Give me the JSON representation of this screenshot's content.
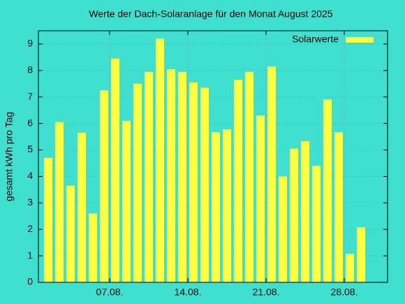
{
  "chart_data": {
    "type": "bar",
    "title": "Werte der Dach-Solaranlage für den Monat August 2025",
    "ylabel": "gesamt kWh pro Tag",
    "x": [
      1,
      2,
      3,
      4,
      5,
      6,
      7,
      8,
      9,
      10,
      11,
      12,
      13,
      14,
      15,
      16,
      17,
      18,
      19,
      20,
      21,
      22,
      23,
      24,
      25,
      26,
      27,
      28,
      29
    ],
    "series": [
      {
        "name": "Solarwerte",
        "color": "#ffff40",
        "values": [
          4.7,
          6.05,
          3.65,
          5.65,
          2.6,
          7.25,
          8.45,
          6.1,
          7.5,
          7.95,
          9.2,
          8.05,
          7.95,
          7.55,
          7.35,
          5.67,
          5.78,
          7.65,
          7.95,
          6.3,
          8.15,
          4.0,
          5.05,
          5.33,
          4.4,
          6.9,
          5.67,
          1.08,
          2.08
        ]
      }
    ],
    "xlim": [
      0.625,
      31.875
    ],
    "xticks": [
      {
        "value": 7,
        "label": "07.08."
      },
      {
        "value": 14,
        "label": "14.08."
      },
      {
        "value": 21,
        "label": "21.08."
      },
      {
        "value": 28,
        "label": "28.08."
      }
    ],
    "ylim": [
      0,
      9.5
    ],
    "yticks": [
      0,
      1,
      2,
      3,
      4,
      5,
      6,
      7,
      8,
      9
    ],
    "grid": true,
    "legend": "top-right"
  }
}
